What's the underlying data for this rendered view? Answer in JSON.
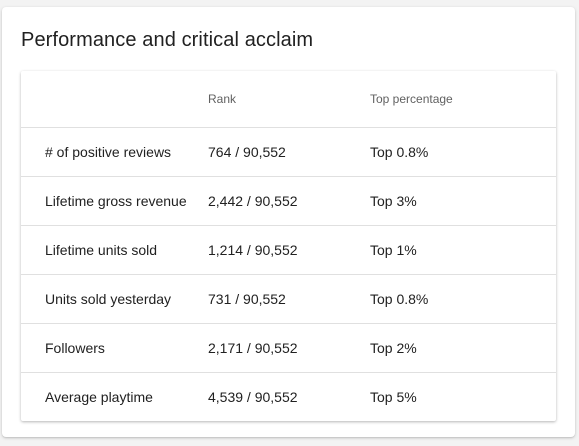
{
  "card": {
    "title": "Performance and critical acclaim"
  },
  "table": {
    "headers": [
      "",
      "Rank",
      "Top percentage"
    ],
    "rows": [
      {
        "metric": "# of positive reviews",
        "rank": "764 / 90,552",
        "top": "Top 0.8%"
      },
      {
        "metric": "Lifetime gross revenue",
        "rank": "2,442 / 90,552",
        "top": "Top 3%"
      },
      {
        "metric": "Lifetime units sold",
        "rank": "1,214 / 90,552",
        "top": "Top 1%"
      },
      {
        "metric": "Units sold yesterday",
        "rank": "731 / 90,552",
        "top": "Top 0.8%"
      },
      {
        "metric": "Followers",
        "rank": "2,171 / 90,552",
        "top": "Top 2%"
      },
      {
        "metric": "Average playtime",
        "rank": "4,539 / 90,552",
        "top": "Top 5%"
      }
    ]
  }
}
